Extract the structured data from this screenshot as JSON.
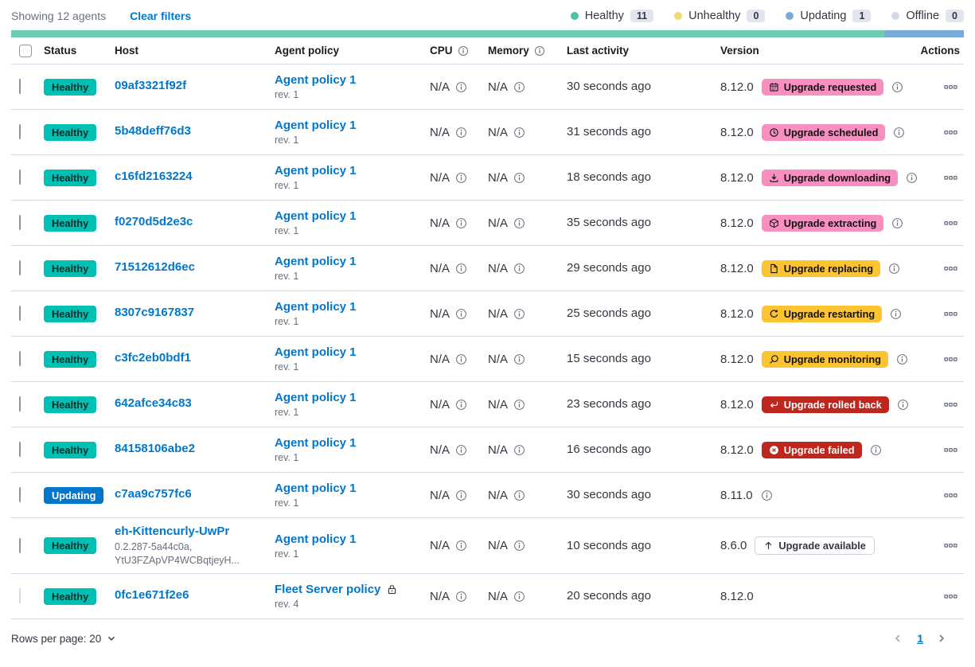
{
  "toolbar": {
    "showing_label": "Showing 12 agents",
    "clear_filters_label": "Clear filters",
    "legend": [
      {
        "label": "Healthy",
        "count": "11",
        "color": "#4DC3A6"
      },
      {
        "label": "Unhealthy",
        "count": "0",
        "color": "#F1D86F"
      },
      {
        "label": "Updating",
        "count": "1",
        "color": "#79AAD9"
      },
      {
        "label": "Offline",
        "count": "0",
        "color": "#D3DAE6"
      }
    ]
  },
  "health_bar": {
    "segments": [
      {
        "status": "healthy",
        "color": "#6DCCB1",
        "fraction": 11
      },
      {
        "status": "updating",
        "color": "#79AAD9",
        "fraction": 1
      }
    ]
  },
  "table": {
    "headers": [
      {
        "label": "Status"
      },
      {
        "label": "Host"
      },
      {
        "label": "Agent policy"
      },
      {
        "label": "CPU",
        "info": true
      },
      {
        "label": "Memory",
        "info": true
      },
      {
        "label": "Last activity"
      },
      {
        "label": "Version"
      },
      {
        "label": "Actions"
      }
    ],
    "rows": [
      {
        "status": "Healthy",
        "status_style": "healthy",
        "host": "09af3321f92f",
        "host_sub": [],
        "policy": "Agent policy 1",
        "policy_rev": "rev. 1",
        "policy_locked": false,
        "cpu": "N/A",
        "memory": "N/A",
        "last_activity": "30 seconds ago",
        "version": "8.12.0",
        "upgrade": {
          "label": "Upgrade requested",
          "icon": "calendar-icon",
          "style": "pink"
        },
        "version_info": true,
        "checkbox_disabled": false
      },
      {
        "status": "Healthy",
        "status_style": "healthy",
        "host": "5b48deff76d3",
        "host_sub": [],
        "policy": "Agent policy 1",
        "policy_rev": "rev. 1",
        "policy_locked": false,
        "cpu": "N/A",
        "memory": "N/A",
        "last_activity": "31 seconds ago",
        "version": "8.12.0",
        "upgrade": {
          "label": "Upgrade scheduled",
          "icon": "clock-icon",
          "style": "pink"
        },
        "version_info": true,
        "checkbox_disabled": false
      },
      {
        "status": "Healthy",
        "status_style": "healthy",
        "host": "c16fd2163224",
        "host_sub": [],
        "policy": "Agent policy 1",
        "policy_rev": "rev. 1",
        "policy_locked": false,
        "cpu": "N/A",
        "memory": "N/A",
        "last_activity": "18 seconds ago",
        "version": "8.12.0",
        "upgrade": {
          "label": "Upgrade downloading",
          "icon": "download-icon",
          "style": "pink"
        },
        "version_info": true,
        "checkbox_disabled": false
      },
      {
        "status": "Healthy",
        "status_style": "healthy",
        "host": "f0270d5d2e3c",
        "host_sub": [],
        "policy": "Agent policy 1",
        "policy_rev": "rev. 1",
        "policy_locked": false,
        "cpu": "N/A",
        "memory": "N/A",
        "last_activity": "35 seconds ago",
        "version": "8.12.0",
        "upgrade": {
          "label": "Upgrade extracting",
          "icon": "package-icon",
          "style": "pink"
        },
        "version_info": true,
        "checkbox_disabled": false
      },
      {
        "status": "Healthy",
        "status_style": "healthy",
        "host": "71512612d6ec",
        "host_sub": [],
        "policy": "Agent policy 1",
        "policy_rev": "rev. 1",
        "policy_locked": false,
        "cpu": "N/A",
        "memory": "N/A",
        "last_activity": "29 seconds ago",
        "version": "8.12.0",
        "upgrade": {
          "label": "Upgrade replacing",
          "icon": "document-icon",
          "style": "yellow"
        },
        "version_info": true,
        "checkbox_disabled": false
      },
      {
        "status": "Healthy",
        "status_style": "healthy",
        "host": "8307c9167837",
        "host_sub": [],
        "policy": "Agent policy 1",
        "policy_rev": "rev. 1",
        "policy_locked": false,
        "cpu": "N/A",
        "memory": "N/A",
        "last_activity": "25 seconds ago",
        "version": "8.12.0",
        "upgrade": {
          "label": "Upgrade restarting",
          "icon": "refresh-icon",
          "style": "yellow"
        },
        "version_info": true,
        "checkbox_disabled": false
      },
      {
        "status": "Healthy",
        "status_style": "healthy",
        "host": "c3fc2eb0bdf1",
        "host_sub": [],
        "policy": "Agent policy 1",
        "policy_rev": "rev. 1",
        "policy_locked": false,
        "cpu": "N/A",
        "memory": "N/A",
        "last_activity": "15 seconds ago",
        "version": "8.12.0",
        "upgrade": {
          "label": "Upgrade monitoring",
          "icon": "inspect-icon",
          "style": "yellow"
        },
        "version_info": true,
        "checkbox_disabled": false
      },
      {
        "status": "Healthy",
        "status_style": "healthy",
        "host": "642afce34c83",
        "host_sub": [],
        "policy": "Agent policy 1",
        "policy_rev": "rev. 1",
        "policy_locked": false,
        "cpu": "N/A",
        "memory": "N/A",
        "last_activity": "23 seconds ago",
        "version": "8.12.0",
        "upgrade": {
          "label": "Upgrade rolled back",
          "icon": "return-icon",
          "style": "red"
        },
        "version_info": true,
        "checkbox_disabled": false
      },
      {
        "status": "Healthy",
        "status_style": "healthy",
        "host": "84158106abe2",
        "host_sub": [],
        "policy": "Agent policy 1",
        "policy_rev": "rev. 1",
        "policy_locked": false,
        "cpu": "N/A",
        "memory": "N/A",
        "last_activity": "16 seconds ago",
        "version": "8.12.0",
        "upgrade": {
          "label": "Upgrade failed",
          "icon": "error-icon",
          "style": "red"
        },
        "version_info": true,
        "checkbox_disabled": false
      },
      {
        "status": "Updating",
        "status_style": "updating",
        "host": "c7aa9c757fc6",
        "host_sub": [],
        "policy": "Agent policy 1",
        "policy_rev": "rev. 1",
        "policy_locked": false,
        "cpu": "N/A",
        "memory": "N/A",
        "last_activity": "30 seconds ago",
        "version": "8.11.0",
        "upgrade": null,
        "version_info": true,
        "checkbox_disabled": false
      },
      {
        "status": "Healthy",
        "status_style": "healthy",
        "host": "eh-Kittencurly-UwPr",
        "host_sub": [
          "0.2.287-5a44c0a,",
          "YtU3FZApVP4WCBqtjeyH..."
        ],
        "policy": "Agent policy 1",
        "policy_rev": "rev. 1",
        "policy_locked": false,
        "cpu": "N/A",
        "memory": "N/A",
        "last_activity": "10 seconds ago",
        "version": "8.6.0",
        "upgrade": {
          "label": "Upgrade available",
          "icon": "arrow-up-icon",
          "style": "hollow"
        },
        "version_info": false,
        "checkbox_disabled": false
      },
      {
        "status": "Healthy",
        "status_style": "healthy",
        "host": "0fc1e671f2e6",
        "host_sub": [],
        "policy": "Fleet Server policy",
        "policy_rev": "rev. 4",
        "policy_locked": true,
        "cpu": "N/A",
        "memory": "N/A",
        "last_activity": "20 seconds ago",
        "version": "8.12.0",
        "upgrade": null,
        "version_info": false,
        "checkbox_disabled": true
      }
    ]
  },
  "footer": {
    "rows_per_page_label": "Rows per page: 20",
    "page": "1"
  },
  "colors": {
    "link": "#0077CC",
    "healthy_badge": "#00BFB3",
    "updating_badge": "#0077CC",
    "badge_pink": "#F98FC0",
    "badge_yellow": "#FDC431",
    "badge_red": "#BD271E",
    "bar_green": "#6DCCB1",
    "bar_blue": "#79AAD9"
  }
}
